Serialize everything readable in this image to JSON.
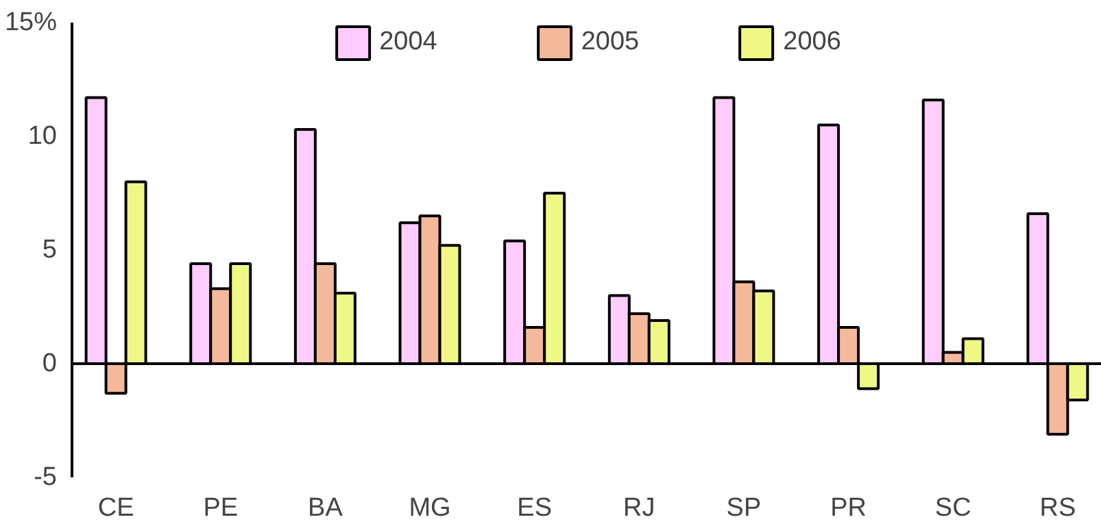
{
  "chart_data": {
    "type": "bar",
    "categories": [
      "CE",
      "PE",
      "BA",
      "MG",
      "ES",
      "RJ",
      "SP",
      "PR",
      "SC",
      "RS"
    ],
    "series": [
      {
        "name": "2004",
        "color": "#ffccff",
        "values": [
          11.7,
          4.4,
          10.3,
          6.2,
          5.4,
          3.0,
          11.7,
          10.5,
          11.6,
          6.6
        ]
      },
      {
        "name": "2005",
        "color": "#f4b99a",
        "values": [
          -1.3,
          3.3,
          4.4,
          6.5,
          1.6,
          2.2,
          3.6,
          1.6,
          0.5,
          -3.1
        ]
      },
      {
        "name": "2006",
        "color": "#f0f885",
        "values": [
          8.0,
          4.4,
          3.1,
          5.2,
          7.5,
          1.9,
          3.2,
          -1.1,
          1.1,
          -1.6
        ]
      }
    ],
    "ylim": [
      -5,
      15
    ],
    "yticks": [
      -5,
      0,
      5,
      10,
      {
        "value": 15,
        "label": "15%"
      }
    ],
    "legend": "top"
  }
}
